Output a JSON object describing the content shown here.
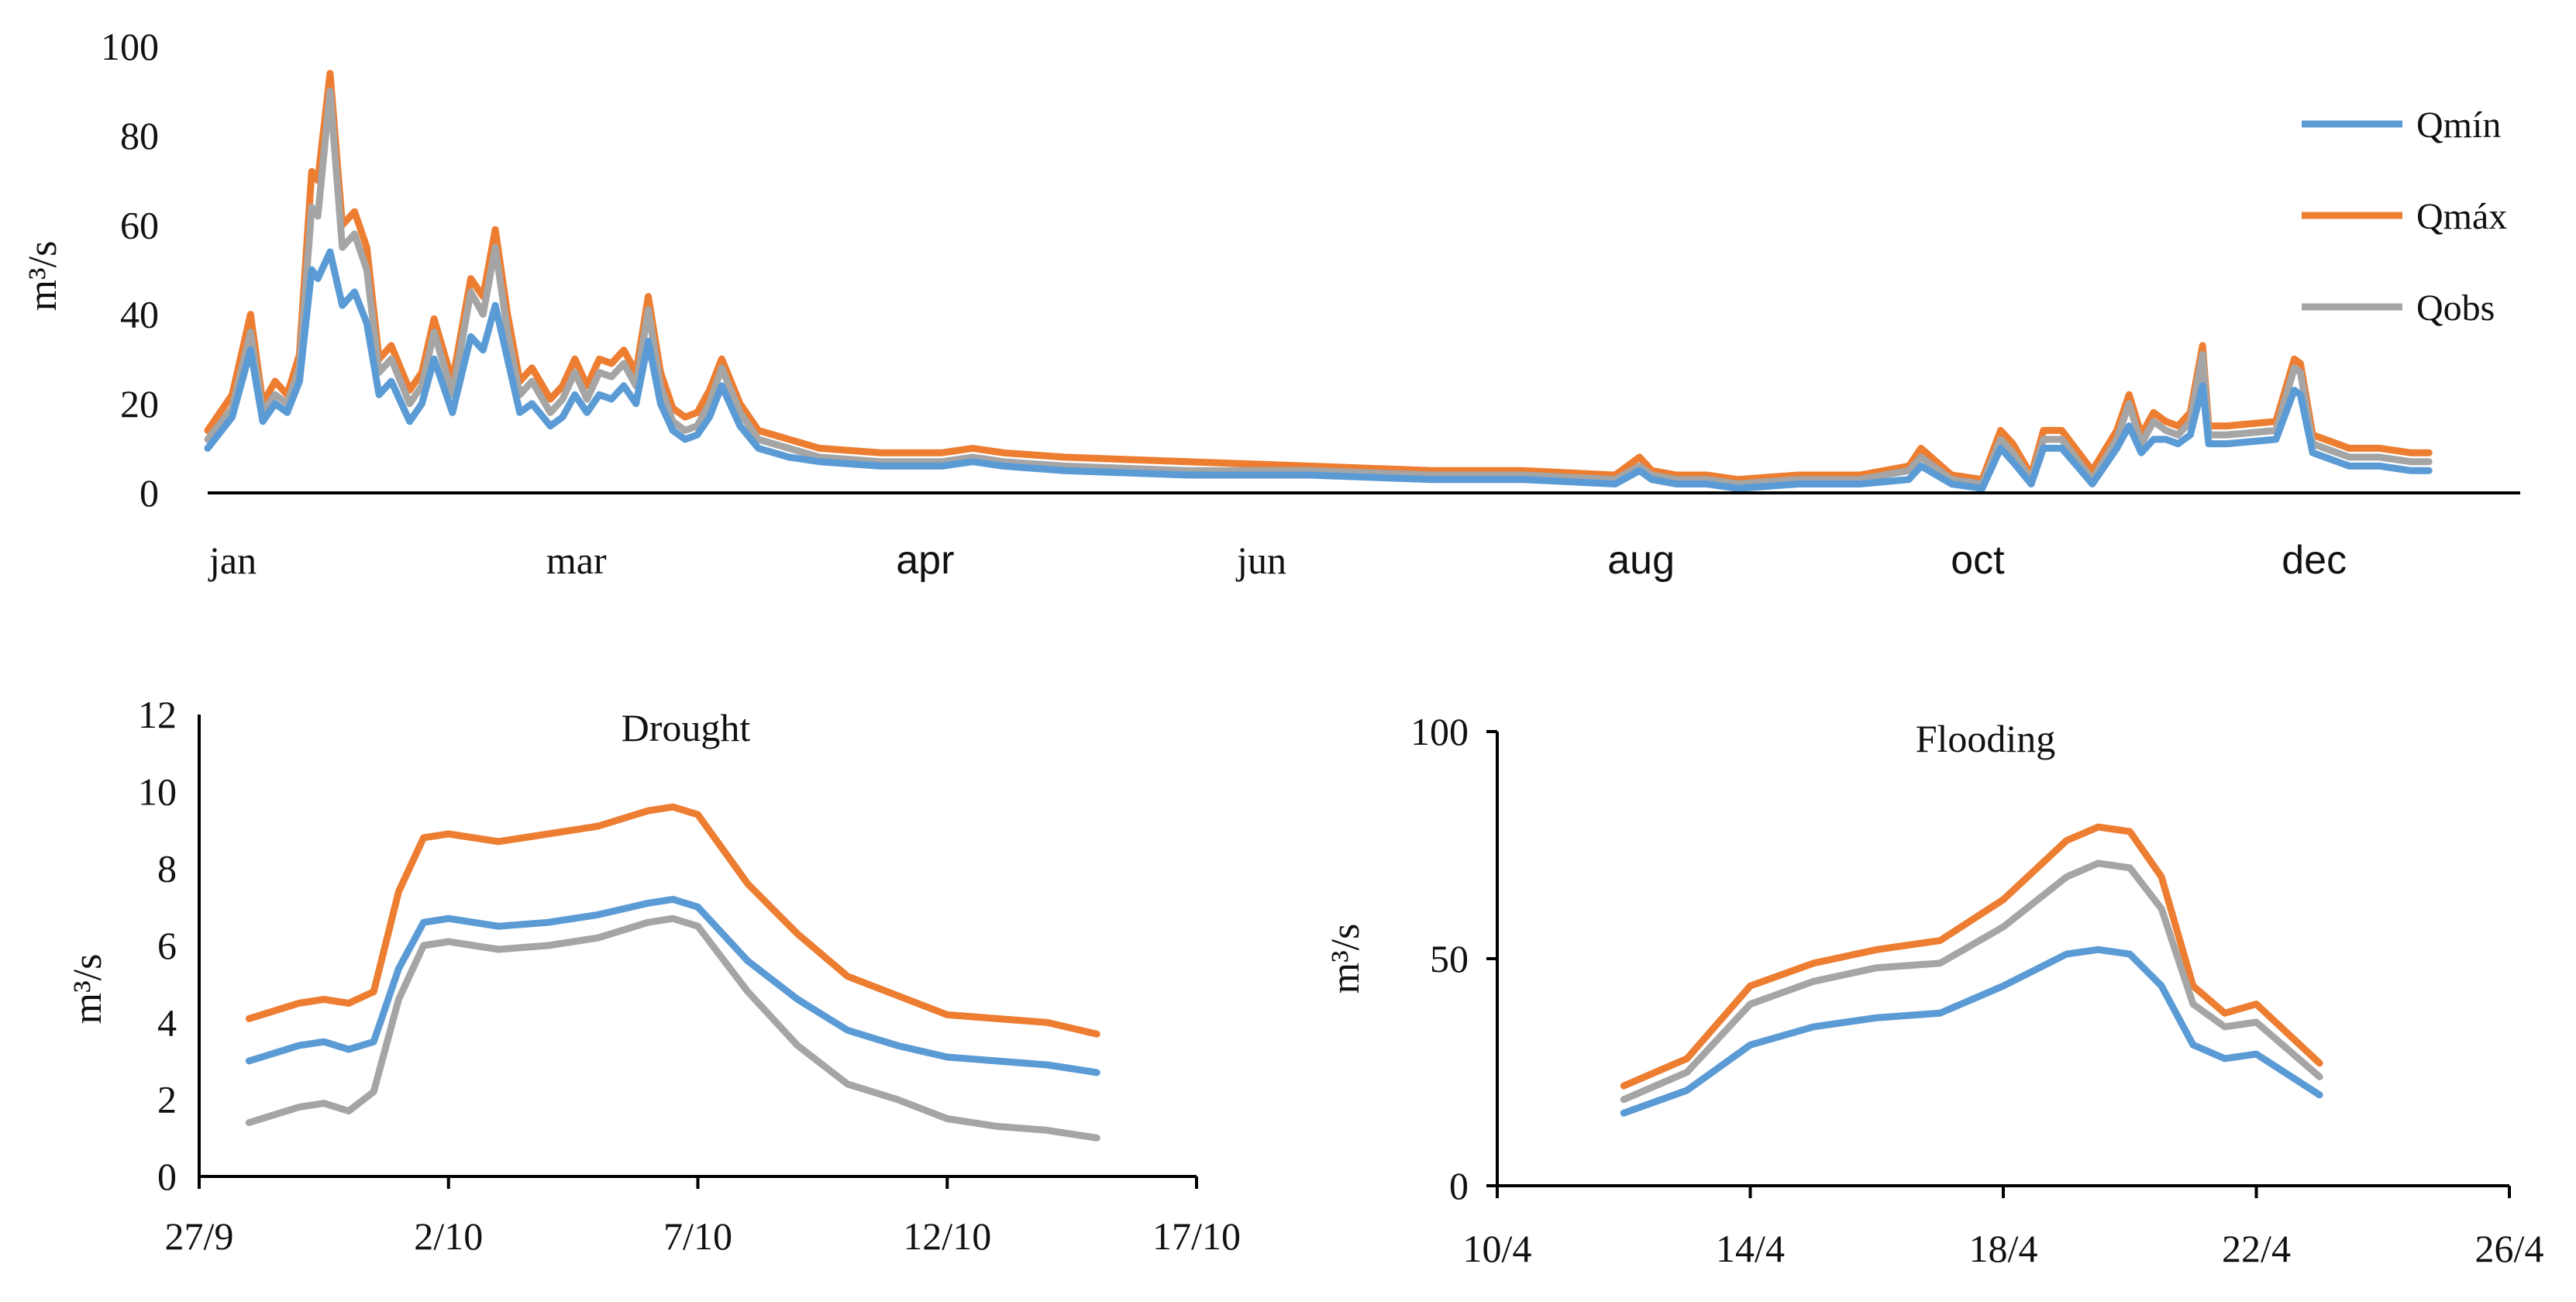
{
  "colors": {
    "Qmin": "#5b9bd5",
    "Qmax": "#ed7d31",
    "Qobs": "#a5a5a5"
  },
  "chart_data": [
    {
      "type": "line",
      "title": "",
      "xlabel": "",
      "ylabel": "m³/s",
      "ylim": [
        0,
        100
      ],
      "xlim": [
        0,
        365
      ],
      "yticks": [
        "0",
        "20",
        "40",
        "60",
        "80",
        "100"
      ],
      "month_labels": [
        {
          "label": "jan",
          "day": 0
        },
        {
          "label": "mar",
          "day": 60
        },
        {
          "label": "apr",
          "day": 117
        },
        {
          "label": "jun",
          "day": 172
        },
        {
          "label": "aug",
          "day": 234
        },
        {
          "label": "oct",
          "day": 289
        },
        {
          "label": "dec",
          "day": 344
        }
      ],
      "legend": [
        "Qmín",
        "Qmáx",
        "Qobs"
      ],
      "x": [
        0,
        4,
        7,
        9,
        11,
        13,
        15,
        17,
        18,
        20,
        22,
        24,
        26,
        28,
        30,
        33,
        35,
        37,
        40,
        43,
        45,
        47,
        49,
        51,
        53,
        56,
        58,
        60,
        62,
        64,
        66,
        68,
        70,
        72,
        74,
        76,
        78,
        80,
        82,
        84,
        87,
        90,
        95,
        100,
        110,
        120,
        125,
        130,
        140,
        160,
        180,
        200,
        215,
        230,
        234,
        236,
        240,
        245,
        250,
        260,
        270,
        278,
        280,
        285,
        290,
        293,
        295,
        298,
        300,
        303,
        308,
        312,
        314,
        316,
        318,
        320,
        322,
        324,
        326,
        327,
        328,
        330,
        338,
        341,
        342,
        344,
        346,
        348,
        350,
        355,
        360,
        363
      ],
      "series": [
        {
          "name": "Qmín",
          "values": [
            10,
            17,
            32,
            16,
            20,
            18,
            25,
            50,
            48,
            54,
            42,
            45,
            38,
            22,
            25,
            16,
            20,
            30,
            18,
            35,
            32,
            42,
            30,
            18,
            20,
            15,
            17,
            22,
            18,
            22,
            21,
            24,
            20,
            34,
            20,
            14,
            12,
            13,
            17,
            24,
            15,
            10,
            8,
            7,
            6,
            6,
            7,
            6,
            5,
            4,
            4,
            3,
            3,
            2,
            5,
            3,
            2,
            2,
            1,
            2,
            2,
            3,
            6,
            2,
            1,
            10,
            7,
            2,
            10,
            10,
            2,
            10,
            15,
            9,
            12,
            12,
            11,
            13,
            24,
            11,
            11,
            11,
            12,
            23,
            22,
            9,
            8,
            7,
            6,
            6,
            5,
            5
          ]
        },
        {
          "name": "Qmáx",
          "values": [
            14,
            22,
            40,
            20,
            25,
            22,
            31,
            72,
            70,
            94,
            60,
            63,
            55,
            30,
            33,
            23,
            27,
            39,
            25,
            48,
            44,
            59,
            40,
            25,
            28,
            21,
            24,
            30,
            24,
            30,
            29,
            32,
            27,
            44,
            27,
            19,
            17,
            18,
            23,
            30,
            20,
            14,
            12,
            10,
            9,
            9,
            10,
            9,
            8,
            7,
            6,
            5,
            5,
            4,
            8,
            5,
            4,
            4,
            3,
            4,
            4,
            6,
            10,
            4,
            3,
            14,
            11,
            4,
            14,
            14,
            5,
            14,
            22,
            13,
            18,
            16,
            15,
            18,
            33,
            15,
            15,
            15,
            16,
            30,
            29,
            13,
            12,
            11,
            10,
            10,
            9,
            9
          ]
        },
        {
          "name": "Qobs",
          "values": [
            12,
            19,
            36,
            18,
            22,
            20,
            28,
            64,
            62,
            90,
            55,
            58,
            50,
            27,
            30,
            20,
            24,
            36,
            22,
            45,
            40,
            55,
            36,
            22,
            25,
            18,
            21,
            27,
            21,
            27,
            26,
            29,
            24,
            41,
            24,
            16,
            14,
            15,
            20,
            28,
            18,
            12,
            10,
            8,
            7,
            7,
            8,
            7,
            6,
            5,
            5,
            4,
            4,
            3,
            6,
            4,
            3,
            3,
            2,
            3,
            3,
            5,
            8,
            3,
            2,
            12,
            9,
            3,
            12,
            12,
            3,
            12,
            20,
            11,
            16,
            14,
            13,
            16,
            31,
            13,
            13,
            13,
            14,
            28,
            27,
            11,
            10,
            9,
            8,
            8,
            7,
            7
          ]
        }
      ]
    },
    {
      "type": "line",
      "title": "Drought",
      "xlabel": "",
      "ylabel": "m³/s",
      "ylim": [
        0,
        12
      ],
      "xlim": [
        0,
        20
      ],
      "yticks": [
        "0",
        "2",
        "4",
        "6",
        "8",
        "10",
        "12"
      ],
      "xticks": [
        {
          "label": "27/9",
          "x": 0
        },
        {
          "label": "2/10",
          "x": 5
        },
        {
          "label": "7/10",
          "x": 10
        },
        {
          "label": "12/10",
          "x": 15
        },
        {
          "label": "17/10",
          "x": 20
        }
      ],
      "x": [
        1,
        2,
        2.5,
        3,
        3.5,
        4,
        4.5,
        5,
        6,
        7,
        8,
        9,
        9.5,
        10,
        11,
        12,
        13,
        14,
        15,
        16,
        17,
        18
      ],
      "series": [
        {
          "name": "Qmín",
          "values": [
            3.0,
            3.4,
            3.5,
            3.3,
            3.5,
            5.4,
            6.6,
            6.7,
            6.5,
            6.6,
            6.8,
            7.1,
            7.2,
            7.0,
            5.6,
            4.6,
            3.8,
            3.4,
            3.1,
            3.0,
            2.9,
            2.7
          ]
        },
        {
          "name": "Qmáx",
          "values": [
            4.1,
            4.5,
            4.6,
            4.5,
            4.8,
            7.4,
            8.8,
            8.9,
            8.7,
            8.9,
            9.1,
            9.5,
            9.6,
            9.4,
            7.6,
            6.3,
            5.2,
            4.7,
            4.2,
            4.1,
            4.0,
            3.7
          ]
        },
        {
          "name": "Qobs",
          "values": [
            1.4,
            1.8,
            1.9,
            1.7,
            2.2,
            4.6,
            6.0,
            6.1,
            5.9,
            6.0,
            6.2,
            6.6,
            6.7,
            6.5,
            4.8,
            3.4,
            2.4,
            2.0,
            1.5,
            1.3,
            1.2,
            1.0
          ]
        }
      ]
    },
    {
      "type": "line",
      "title": "Flooding",
      "xlabel": "",
      "ylabel": "m³/s",
      "ylim": [
        0,
        100
      ],
      "xlim": [
        0,
        16
      ],
      "yticks": [
        "0",
        "50",
        "100"
      ],
      "xticks": [
        {
          "label": "10/4",
          "x": 0
        },
        {
          "label": "14/4",
          "x": 4
        },
        {
          "label": "18/4",
          "x": 8
        },
        {
          "label": "22/4",
          "x": 12
        },
        {
          "label": "26/4",
          "x": 16
        }
      ],
      "x": [
        2,
        3,
        4,
        5,
        6,
        7,
        8,
        9,
        9.5,
        10,
        10.5,
        11,
        11.5,
        12,
        13
      ],
      "series": [
        {
          "name": "Qmín",
          "values": [
            16,
            21,
            31,
            35,
            37,
            38,
            44,
            51,
            52,
            51,
            44,
            31,
            28,
            29,
            20
          ]
        },
        {
          "name": "Qmáx",
          "values": [
            22,
            28,
            44,
            49,
            52,
            54,
            63,
            76,
            79,
            78,
            68,
            44,
            38,
            40,
            27
          ]
        },
        {
          "name": "Qobs",
          "values": [
            19,
            25,
            40,
            45,
            48,
            49,
            57,
            68,
            71,
            70,
            61,
            40,
            35,
            36,
            24
          ]
        }
      ]
    }
  ]
}
